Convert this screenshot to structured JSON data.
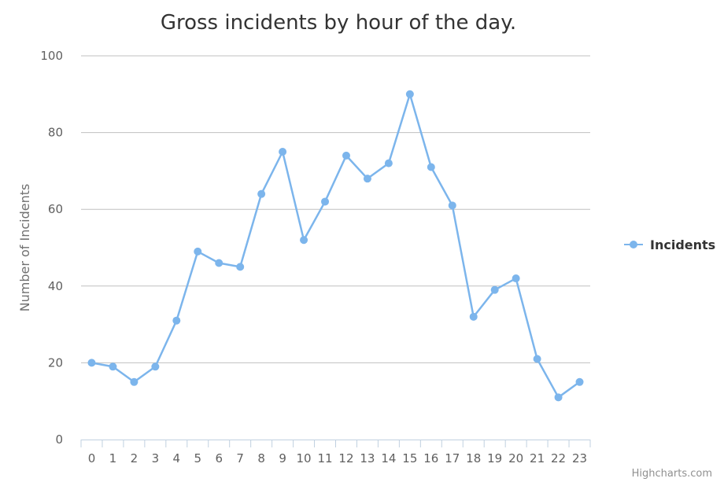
{
  "chart_data": {
    "type": "line",
    "title": "Gross incidents by hour of the day.",
    "xlabel": "",
    "ylabel": "Number of Incidents",
    "categories": [
      "0",
      "1",
      "2",
      "3",
      "4",
      "5",
      "6",
      "7",
      "8",
      "9",
      "10",
      "11",
      "12",
      "13",
      "14",
      "15",
      "16",
      "17",
      "18",
      "19",
      "20",
      "21",
      "22",
      "23"
    ],
    "series": [
      {
        "name": "Incidents",
        "values": [
          20,
          19,
          15,
          19,
          31,
          49,
          46,
          45,
          64,
          75,
          52,
          62,
          74,
          68,
          72,
          90,
          71,
          61,
          32,
          39,
          42,
          21,
          11,
          15
        ]
      }
    ],
    "ylim": [
      0,
      100
    ],
    "yticks": [
      0,
      20,
      40,
      60,
      80,
      100
    ],
    "grid": true,
    "legend_position": "right",
    "color": "#7cb5ec"
  },
  "credits": "Highcharts.com"
}
